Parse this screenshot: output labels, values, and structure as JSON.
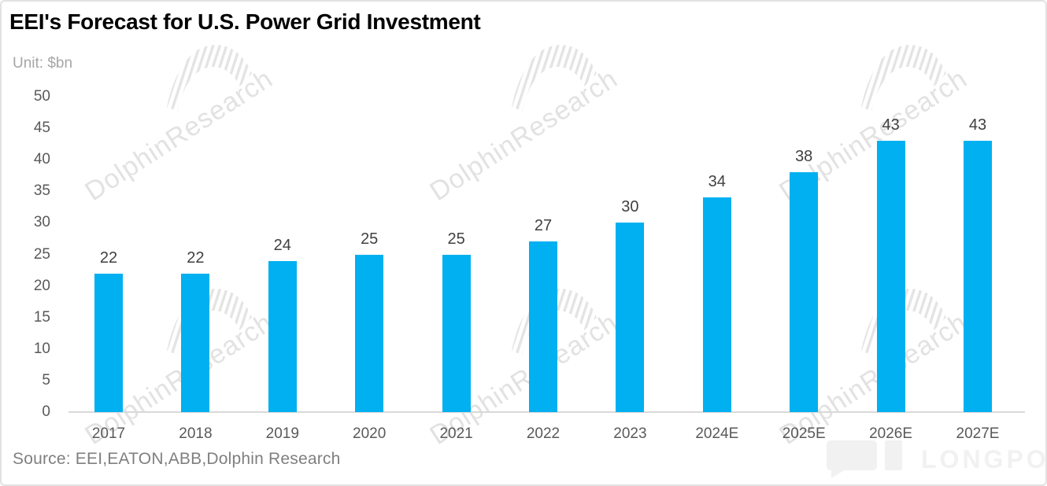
{
  "header": {
    "title": "EEI's Forecast for U.S. Power Grid Investment",
    "unit_label": "Unit: $bn"
  },
  "footer": {
    "source": "Source: EEI,EATON,ABB,Dolphin Research",
    "logo_text": "LONGPORT"
  },
  "watermark": {
    "text": "DolphinResearch"
  },
  "colors": {
    "bar": "#00B0F0",
    "axis_line": "#d9d9d9",
    "tick_text": "#595959",
    "value_label_text": "#404040",
    "unit_text": "#a6a6a6",
    "source_text": "#7f7f7f",
    "watermark": "#e2e2e2",
    "logo": "#f1f1f1",
    "title_text": "#000000"
  },
  "chart_data": {
    "type": "bar",
    "title": "EEI's Forecast for U.S. Power Grid Investment",
    "unit": "$bn",
    "categories": [
      "2017",
      "2018",
      "2019",
      "2020",
      "2021",
      "2022",
      "2023",
      "2024E",
      "2025E",
      "2026E",
      "2027E"
    ],
    "values": [
      22,
      22,
      24,
      25,
      25,
      27,
      30,
      34,
      38,
      43,
      43
    ],
    "xlabel": "",
    "ylabel": "Unit: $bn",
    "ylim": [
      0,
      50
    ],
    "yticks": [
      0,
      5,
      10,
      15,
      20,
      25,
      30,
      35,
      40,
      45,
      50
    ],
    "grid": false,
    "legend": false,
    "data_labels": true,
    "bar_color": "#00B0F0",
    "source": "Source: EEI,EATON,ABB,Dolphin Research"
  }
}
